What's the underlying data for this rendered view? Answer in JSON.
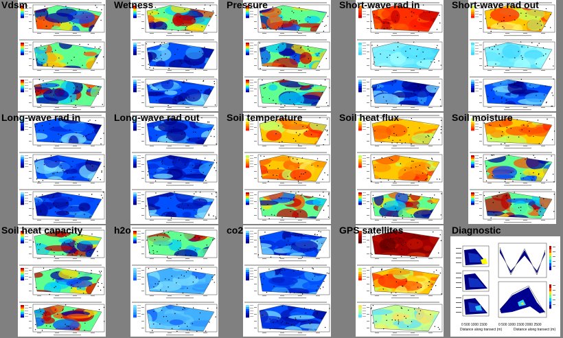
{
  "panels": [
    {
      "id": "vdsm",
      "title": "Vdsm",
      "palettes": [
        "jet",
        "jet",
        "jet"
      ]
    },
    {
      "id": "wetness",
      "title": "Wetness",
      "palettes": [
        "jet",
        "blue",
        "blue"
      ]
    },
    {
      "id": "pressure",
      "title": "Pressure",
      "palettes": [
        "jet",
        "jet",
        "jet"
      ]
    },
    {
      "id": "sw-in",
      "title": "Short-wave rad in",
      "palettes": [
        "red",
        "cyan",
        "blue"
      ]
    },
    {
      "id": "sw-out",
      "title": "Short-wave rad out",
      "palettes": [
        "warm",
        "cyan",
        "blue"
      ]
    },
    {
      "id": "lw-in",
      "title": "Long-wave rad in",
      "palettes": [
        "blue",
        "blue",
        "blue"
      ]
    },
    {
      "id": "lw-out",
      "title": "Long-wave rad out",
      "palettes": [
        "blue",
        "blue",
        "blue"
      ]
    },
    {
      "id": "soil-temp",
      "title": "Soil temperature",
      "palettes": [
        "warm",
        "warm",
        "jet"
      ]
    },
    {
      "id": "soil-heat-flux",
      "title": "Soil heat flux",
      "palettes": [
        "warm",
        "warm",
        "jet"
      ]
    },
    {
      "id": "soil-moisture",
      "title": "Soil moisture",
      "palettes": [
        "warm",
        "jet",
        "jet"
      ]
    },
    {
      "id": "soil-heat-cap",
      "title": "Soil heat capacity",
      "palettes": [
        "jet",
        "jet",
        "jet"
      ]
    },
    {
      "id": "h2o",
      "title": "h2o",
      "palettes": [
        "jet",
        "sky",
        "sky"
      ]
    },
    {
      "id": "co2",
      "title": "co2",
      "palettes": [
        "blue",
        "blue",
        "blue"
      ]
    },
    {
      "id": "gps",
      "title": "GPS satellites",
      "palettes": [
        "dark",
        "warm",
        "pale"
      ]
    }
  ],
  "diagnostic": {
    "title": "Diagnostic",
    "left_x_label": "Distance along transect (m)",
    "right_x_label": "Distance along transect (m)",
    "left_ticks": [
      "0",
      "500",
      "1000",
      "1500"
    ],
    "right_ticks": [
      "0",
      "500",
      "1000",
      "1500",
      "2000",
      "2500"
    ]
  },
  "colors": {
    "background": "#808080",
    "sheet": "#ffffff",
    "node": "#000000"
  }
}
